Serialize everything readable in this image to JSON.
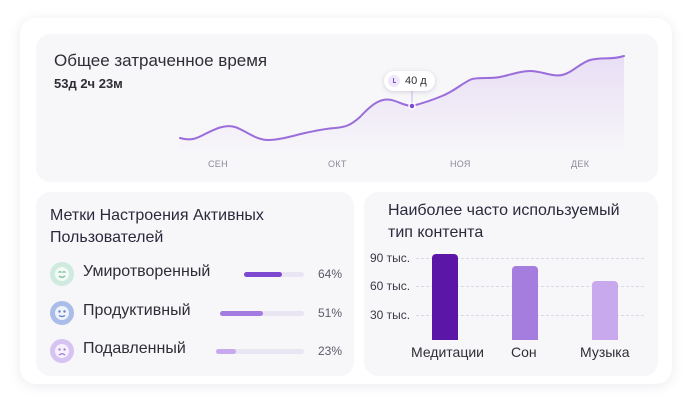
{
  "total_time": {
    "title": "Общее затраченное время",
    "value": "53д 2ч 23м",
    "months": [
      "СЕН",
      "ОКТ",
      "НОЯ",
      "ДЕК"
    ],
    "tooltip": {
      "icon": "clock-icon",
      "label": "40 д"
    },
    "line_color": "#9a6ddb"
  },
  "mood": {
    "title": "Метки Настроения Активных Пользователей",
    "items": [
      {
        "label": "Умиротворенный",
        "percent_label": "64%",
        "percent": 64,
        "icon": "calm-face-icon",
        "color": "#7d49d1",
        "icon_bg": "#cfeadf"
      },
      {
        "label": "Продуктивный",
        "percent_label": "51%",
        "percent": 51,
        "icon": "productive-face-icon",
        "color": "#a47be0",
        "icon_bg": "#a9bde8"
      },
      {
        "label": "Подавленный",
        "percent_label": "23%",
        "percent": 23,
        "icon": "sad-face-icon",
        "color": "#c9a9ee",
        "icon_bg": "#d7c3f2"
      }
    ]
  },
  "content_type": {
    "title": "Наиболее часто используемый тип контента",
    "y_ticks": [
      "90 тыс.",
      "60 тыс.",
      "30 тыс."
    ]
  },
  "chart_data": {
    "type": "bar",
    "title": "Наиболее часто используемый тип контента",
    "categories": [
      "Медитации",
      "Сон",
      "Музыка"
    ],
    "values": [
      86000,
      74000,
      59000
    ],
    "ylim": [
      0,
      100000
    ],
    "y_tick_values": [
      30000,
      60000,
      90000
    ],
    "colors": [
      "#5b16a8",
      "#a57ddf",
      "#c9a9ee"
    ],
    "grid": true
  }
}
